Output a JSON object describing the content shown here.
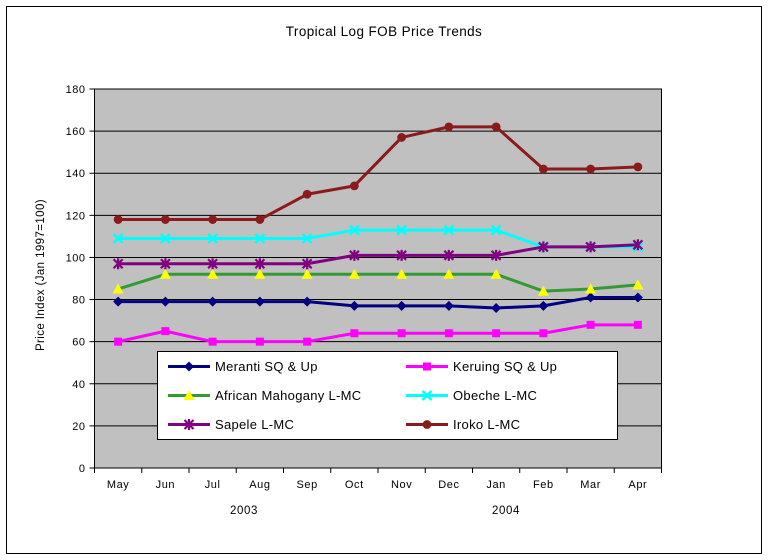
{
  "chart_data": {
    "type": "line",
    "title": "Tropical Log FOB Price Trends",
    "ylabel": "Price Index (Jan 1997=100)",
    "xlabel": "",
    "ylim": [
      0,
      180
    ],
    "ytick_step": 20,
    "grid": true,
    "plot_bg_color": "#C0C0C0",
    "legend_position": "bottom-center-overlay",
    "legend_columns": 2,
    "categories": [
      "May",
      "Jun",
      "Jul",
      "Aug",
      "Sep",
      "Oct",
      "Nov",
      "Dec",
      "Jan",
      "Feb",
      "Mar",
      "Apr"
    ],
    "year_labels": [
      "2003",
      "2004"
    ],
    "series": [
      {
        "name": "Meranti SQ & Up",
        "color": "#000080",
        "marker": "diamond",
        "values": [
          79,
          79,
          79,
          79,
          79,
          77,
          77,
          77,
          76,
          77,
          81,
          81
        ]
      },
      {
        "name": "Keruing SQ & Up",
        "color": "#FF00FF",
        "marker": "square",
        "values": [
          60,
          65,
          60,
          60,
          60,
          64,
          64,
          64,
          64,
          64,
          68,
          68
        ]
      },
      {
        "name": "African Mahogany L-MC",
        "color": "#339933",
        "marker": "triangle",
        "marker_color": "#FFFF00",
        "values": [
          85,
          92,
          92,
          92,
          92,
          92,
          92,
          92,
          92,
          84,
          85,
          87
        ]
      },
      {
        "name": "Obeche L-MC",
        "color": "#00FFFF",
        "marker": "x",
        "values": [
          109,
          109,
          109,
          109,
          109,
          113,
          113,
          113,
          113,
          105,
          105,
          105
        ]
      },
      {
        "name": "Sapele L-MC",
        "color": "#800080",
        "marker": "star",
        "values": [
          97,
          97,
          97,
          97,
          97,
          101,
          101,
          101,
          101,
          105,
          105,
          106
        ]
      },
      {
        "name": "Iroko L-MC",
        "color": "#8B1A1A",
        "marker": "circle",
        "values": [
          118,
          118,
          118,
          118,
          130,
          134,
          157,
          162,
          162,
          142,
          142,
          143
        ]
      }
    ]
  }
}
